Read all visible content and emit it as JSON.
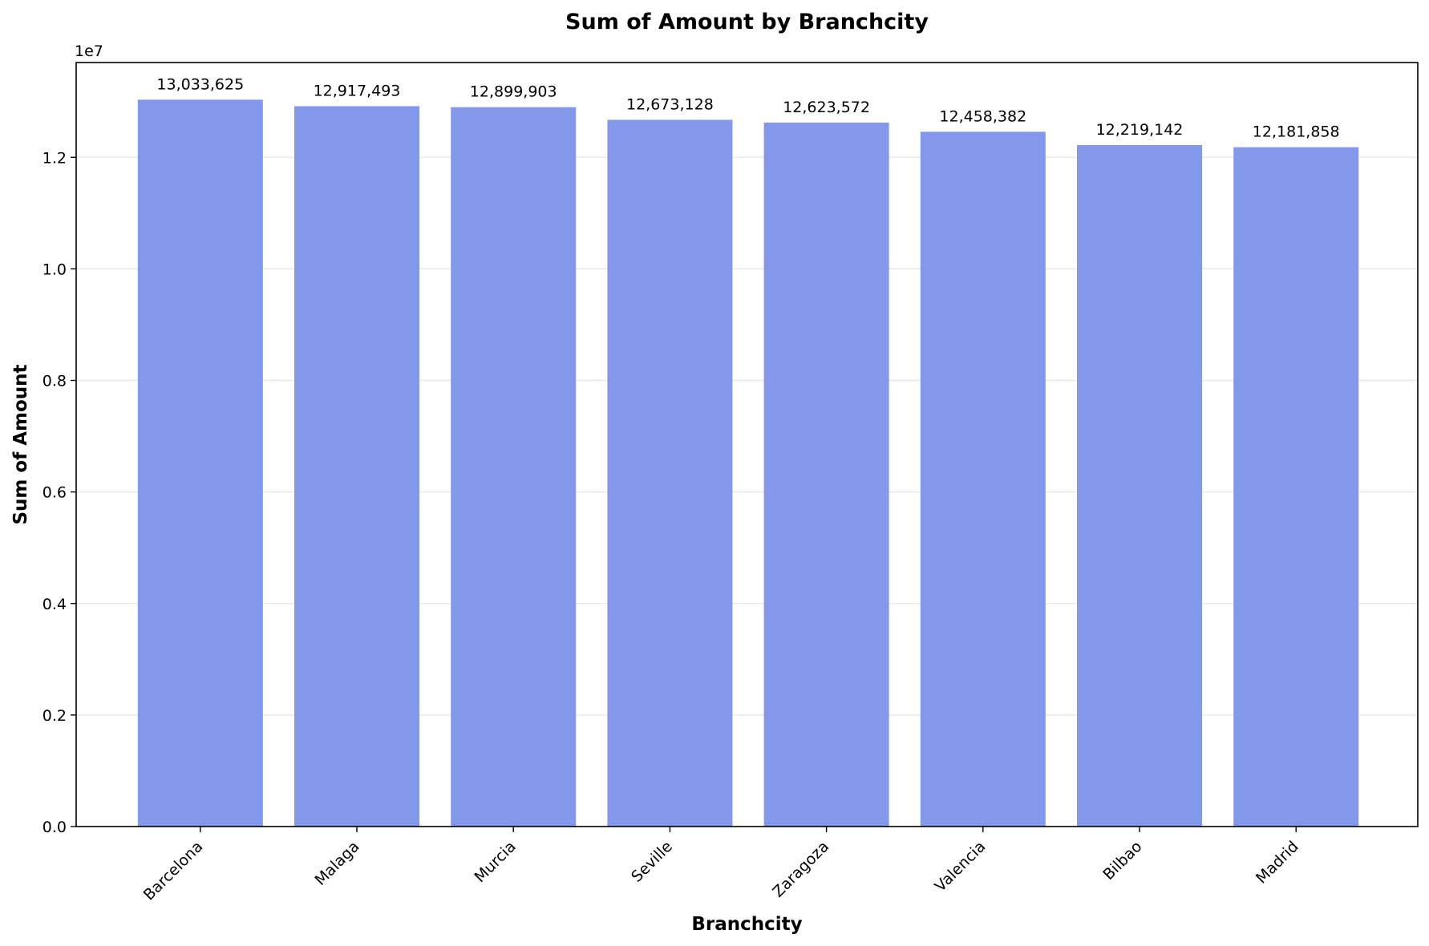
{
  "chart_data": {
    "type": "bar",
    "title": "Sum of Amount by Branchcity",
    "xlabel": "Branchcity",
    "ylabel": "Sum of Amount",
    "y_offset_text": "1e7",
    "categories": [
      "Barcelona",
      "Malaga",
      "Murcia",
      "Seville",
      "Zaragoza",
      "Valencia",
      "Bilbao",
      "Madrid"
    ],
    "values": [
      13033625,
      12917493,
      12899903,
      12673128,
      12623572,
      12458382,
      12219142,
      12181858
    ],
    "value_labels": [
      "13,033,625",
      "12,917,493",
      "12,899,903",
      "12,673,128",
      "12,623,572",
      "12,458,382",
      "12,219,142",
      "12,181,858"
    ],
    "ylim": [
      0,
      13700000
    ],
    "y_ticks": [
      0,
      2000000,
      4000000,
      6000000,
      8000000,
      10000000,
      12000000
    ],
    "y_tick_labels": [
      "0.0",
      "0.2",
      "0.4",
      "0.6",
      "0.8",
      "1.0",
      "1.2"
    ],
    "bar_color": "#8398eb",
    "grid": "horizontal",
    "legend": "none"
  }
}
